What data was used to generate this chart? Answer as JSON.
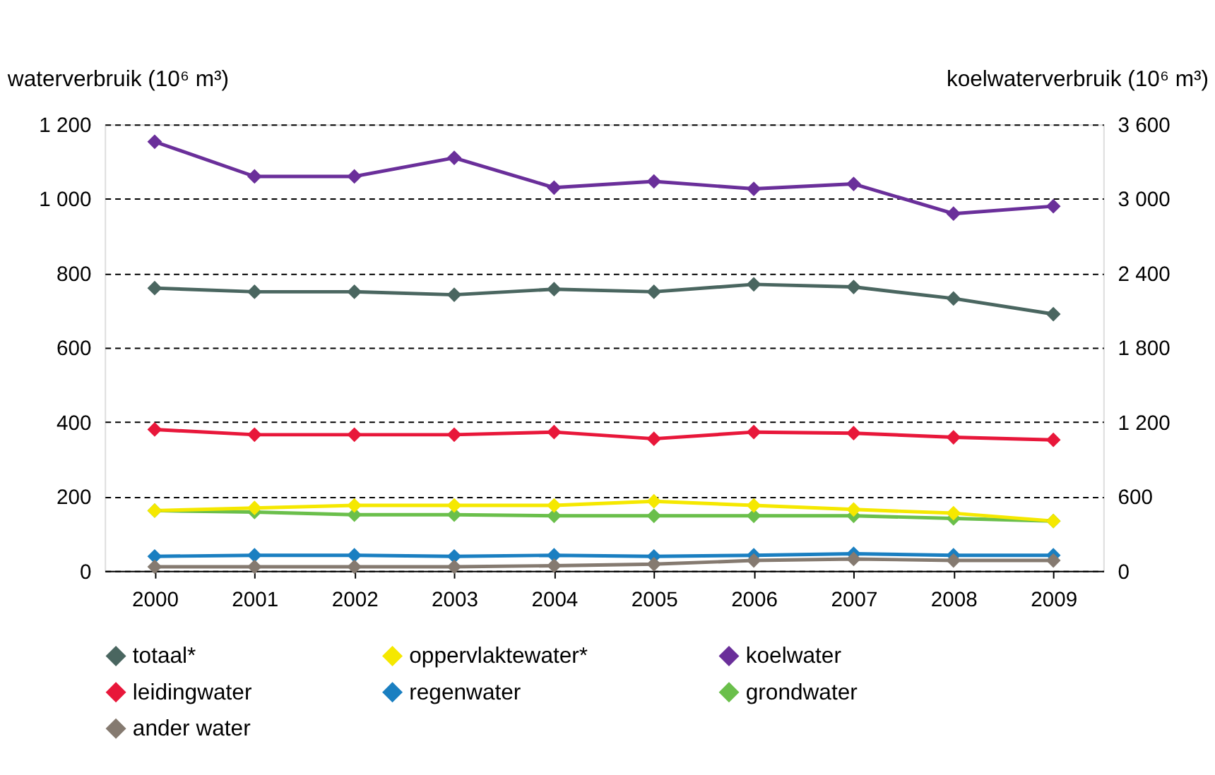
{
  "chart_data": {
    "type": "line",
    "ylabel": "waterverbruik (10⁶ m³)",
    "y2label": "koelwaterverbruik (10⁶ m³)",
    "categories": [
      "2000",
      "2001",
      "2002",
      "2003",
      "2004",
      "2005",
      "2006",
      "2007",
      "2008",
      "2009"
    ],
    "ylim": [
      0,
      1200
    ],
    "yticks": [
      0,
      200,
      400,
      600,
      800,
      {
        "value": 1000,
        "label": "1 000"
      },
      {
        "value": 1200,
        "label": "1 200"
      }
    ],
    "y2lim": [
      0,
      3600
    ],
    "y2ticks": [
      0,
      600,
      {
        "value": 1200,
        "label": "1 200"
      },
      {
        "value": 1800,
        "label": "1 800"
      },
      {
        "value": 2400,
        "label": "2 400"
      },
      {
        "value": 3000,
        "label": "3 000"
      },
      {
        "value": 3600,
        "label": "3 600"
      }
    ],
    "grid": "y",
    "legend": "bottom",
    "marker": "diamond",
    "line_style": "solid",
    "series": [
      {
        "name": "totaal*",
        "color": "#4a6660",
        "values": [
          760,
          750,
          750,
          742,
          757,
          750,
          770,
          763,
          732,
          690
        ]
      },
      {
        "name": "leidingwater",
        "color": "#e8173a",
        "values": [
          380,
          366,
          366,
          366,
          373,
          355,
          373,
          370,
          359,
          352
        ]
      },
      {
        "name": "grondwater",
        "color": "#6abf4b",
        "values": [
          162,
          158,
          151,
          151,
          148,
          148,
          148,
          148,
          141,
          134
        ]
      },
      {
        "name": "oppervlaktewater*",
        "color": "#f5e800",
        "values": [
          162,
          169,
          176,
          176,
          176,
          187,
          176,
          165,
          155,
          134
        ]
      },
      {
        "name": "regenwater",
        "color": "#1a7fc1",
        "values": [
          39,
          42,
          42,
          39,
          42,
          39,
          42,
          46,
          42,
          42
        ]
      },
      {
        "name": "ander water",
        "color": "#857a70",
        "values": [
          11,
          11,
          11,
          11,
          14,
          18,
          28,
          32,
          28,
          28
        ]
      },
      {
        "name": "koelwater",
        "color": "#6a2f9a",
        "axis": "y2",
        "values": [
          3460,
          3180,
          3180,
          3330,
          3090,
          3140,
          3080,
          3120,
          2880,
          2940
        ]
      }
    ]
  }
}
